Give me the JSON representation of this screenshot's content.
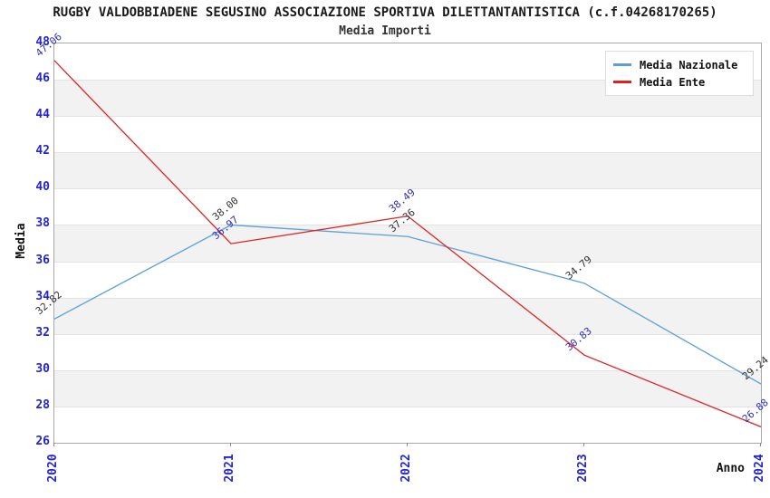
{
  "header": {
    "title": "RUGBY VALDOBBIADENE SEGUSINO ASSOCIAZIONE SPORTIVA DILETTANTANTISTICA (c.f.04268170265)",
    "subtitle": "Media Importi"
  },
  "chart_data": {
    "type": "line",
    "title": "RUGBY VALDOBBIADENE SEGUSINO ASSOCIAZIONE SPORTIVA DILETTANTANTISTICA (c.f.04268170265)",
    "subtitle": "Media Importi",
    "xlabel": "Anno",
    "ylabel": "Media",
    "x": [
      "2020",
      "2021",
      "2022",
      "2023",
      "2024"
    ],
    "series": [
      {
        "name": "Media Nazionale",
        "color": "#5b9fd6",
        "label_color": "#303030",
        "values": [
          32.82,
          38.0,
          37.36,
          34.79,
          29.24
        ]
      },
      {
        "name": "Media Ente",
        "color": "#dd2222",
        "label_color": "#2d2db8",
        "values": [
          47.06,
          36.97,
          38.49,
          30.83,
          26.88
        ]
      }
    ],
    "ylim": [
      26,
      48
    ],
    "ytick_step": 2,
    "xtick_color": "#2424cc",
    "ytick_color": "#2424cc",
    "band_color_alt": "#f2f2f2",
    "grid": "horizontal-bands",
    "legend_position": "top-right"
  }
}
